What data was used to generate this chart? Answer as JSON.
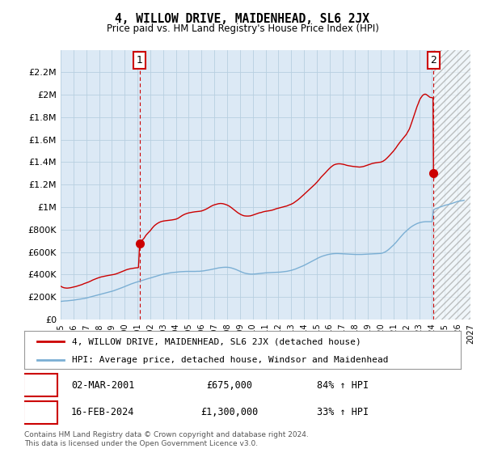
{
  "title": "4, WILLOW DRIVE, MAIDENHEAD, SL6 2JX",
  "subtitle": "Price paid vs. HM Land Registry's House Price Index (HPI)",
  "legend_line1": "4, WILLOW DRIVE, MAIDENHEAD, SL6 2JX (detached house)",
  "legend_line2": "HPI: Average price, detached house, Windsor and Maidenhead",
  "annotation1_label": "1",
  "annotation1_date": "02-MAR-2001",
  "annotation1_price": "£675,000",
  "annotation1_hpi": "84% ↑ HPI",
  "annotation1_year": 2001.17,
  "annotation1_value": 675000,
  "annotation2_label": "2",
  "annotation2_date": "16-FEB-2024",
  "annotation2_price": "£1,300,000",
  "annotation2_hpi": "33% ↑ HPI",
  "annotation2_year": 2024.12,
  "annotation2_value": 1300000,
  "marker1_year": 2001.17,
  "marker1_value": 675000,
  "marker2_year": 2024.12,
  "marker2_value": 1300000,
  "xmin": 1995,
  "xmax": 2027,
  "ymin": 0,
  "ymax": 2400000,
  "yticks": [
    0,
    200000,
    400000,
    600000,
    800000,
    1000000,
    1200000,
    1400000,
    1600000,
    1800000,
    2000000,
    2200000
  ],
  "ytick_labels": [
    "£0",
    "£200K",
    "£400K",
    "£600K",
    "£800K",
    "£1M",
    "£1.2M",
    "£1.4M",
    "£1.6M",
    "£1.8M",
    "£2M",
    "£2.2M"
  ],
  "red_color": "#cc0000",
  "blue_color": "#7bafd4",
  "hatch_color": "#bbbbbb",
  "grid_color": "#b8cfe0",
  "plot_bg_color": "#dce9f5",
  "background_color": "#ffffff",
  "future_shade_start": 2024.12,
  "footer": "Contains HM Land Registry data © Crown copyright and database right 2024.\nThis data is licensed under the Open Government Licence v3.0.",
  "red_line_data": [
    [
      1995.0,
      295000
    ],
    [
      1995.08,
      290000
    ],
    [
      1995.17,
      285000
    ],
    [
      1995.25,
      282000
    ],
    [
      1995.33,
      280000
    ],
    [
      1995.5,
      278000
    ],
    [
      1995.67,
      280000
    ],
    [
      1995.83,
      283000
    ],
    [
      1996.0,
      288000
    ],
    [
      1996.17,
      292000
    ],
    [
      1996.33,
      298000
    ],
    [
      1996.5,
      304000
    ],
    [
      1996.67,
      310000
    ],
    [
      1996.83,
      318000
    ],
    [
      1997.0,
      325000
    ],
    [
      1997.17,
      332000
    ],
    [
      1997.33,
      340000
    ],
    [
      1997.5,
      350000
    ],
    [
      1997.67,
      358000
    ],
    [
      1997.83,
      365000
    ],
    [
      1998.0,
      372000
    ],
    [
      1998.17,
      378000
    ],
    [
      1998.33,
      382000
    ],
    [
      1998.5,
      386000
    ],
    [
      1998.67,
      390000
    ],
    [
      1998.83,
      393000
    ],
    [
      1999.0,
      396000
    ],
    [
      1999.17,
      400000
    ],
    [
      1999.33,
      405000
    ],
    [
      1999.5,
      412000
    ],
    [
      1999.67,
      420000
    ],
    [
      1999.83,
      428000
    ],
    [
      2000.0,
      436000
    ],
    [
      2000.17,
      443000
    ],
    [
      2000.33,
      448000
    ],
    [
      2000.5,
      452000
    ],
    [
      2000.67,
      455000
    ],
    [
      2000.83,
      458000
    ],
    [
      2001.0,
      460000
    ],
    [
      2001.08,
      462000
    ],
    [
      2001.17,
      675000
    ],
    [
      2001.25,
      690000
    ],
    [
      2001.33,
      700000
    ],
    [
      2001.5,
      720000
    ],
    [
      2001.67,
      750000
    ],
    [
      2001.83,
      770000
    ],
    [
      2002.0,
      790000
    ],
    [
      2002.17,
      815000
    ],
    [
      2002.33,
      835000
    ],
    [
      2002.5,
      850000
    ],
    [
      2002.67,
      862000
    ],
    [
      2002.83,
      870000
    ],
    [
      2003.0,
      875000
    ],
    [
      2003.17,
      878000
    ],
    [
      2003.33,
      880000
    ],
    [
      2003.5,
      882000
    ],
    [
      2003.67,
      885000
    ],
    [
      2003.83,
      888000
    ],
    [
      2004.0,
      892000
    ],
    [
      2004.17,
      900000
    ],
    [
      2004.33,
      912000
    ],
    [
      2004.5,
      925000
    ],
    [
      2004.67,
      935000
    ],
    [
      2004.83,
      942000
    ],
    [
      2005.0,
      948000
    ],
    [
      2005.17,
      952000
    ],
    [
      2005.33,
      955000
    ],
    [
      2005.5,
      958000
    ],
    [
      2005.67,
      960000
    ],
    [
      2005.83,
      962000
    ],
    [
      2006.0,
      965000
    ],
    [
      2006.17,
      972000
    ],
    [
      2006.33,
      980000
    ],
    [
      2006.5,
      990000
    ],
    [
      2006.67,
      1002000
    ],
    [
      2006.83,
      1012000
    ],
    [
      2007.0,
      1020000
    ],
    [
      2007.17,
      1025000
    ],
    [
      2007.33,
      1030000
    ],
    [
      2007.5,
      1032000
    ],
    [
      2007.67,
      1030000
    ],
    [
      2007.83,
      1025000
    ],
    [
      2008.0,
      1018000
    ],
    [
      2008.17,
      1008000
    ],
    [
      2008.33,
      995000
    ],
    [
      2008.5,
      980000
    ],
    [
      2008.67,
      965000
    ],
    [
      2008.83,
      950000
    ],
    [
      2009.0,
      938000
    ],
    [
      2009.17,
      928000
    ],
    [
      2009.33,
      922000
    ],
    [
      2009.5,
      920000
    ],
    [
      2009.67,
      920000
    ],
    [
      2009.83,
      922000
    ],
    [
      2010.0,
      928000
    ],
    [
      2010.17,
      935000
    ],
    [
      2010.33,
      942000
    ],
    [
      2010.5,
      948000
    ],
    [
      2010.67,
      952000
    ],
    [
      2010.83,
      958000
    ],
    [
      2011.0,
      962000
    ],
    [
      2011.17,
      965000
    ],
    [
      2011.33,
      968000
    ],
    [
      2011.5,
      972000
    ],
    [
      2011.67,
      978000
    ],
    [
      2011.83,
      985000
    ],
    [
      2012.0,
      990000
    ],
    [
      2012.17,
      995000
    ],
    [
      2012.33,
      1000000
    ],
    [
      2012.5,
      1005000
    ],
    [
      2012.67,
      1010000
    ],
    [
      2012.83,
      1018000
    ],
    [
      2013.0,
      1025000
    ],
    [
      2013.17,
      1035000
    ],
    [
      2013.33,
      1048000
    ],
    [
      2013.5,
      1062000
    ],
    [
      2013.67,
      1078000
    ],
    [
      2013.83,
      1095000
    ],
    [
      2014.0,
      1112000
    ],
    [
      2014.17,
      1130000
    ],
    [
      2014.33,
      1148000
    ],
    [
      2014.5,
      1165000
    ],
    [
      2014.67,
      1182000
    ],
    [
      2014.83,
      1200000
    ],
    [
      2015.0,
      1220000
    ],
    [
      2015.17,
      1242000
    ],
    [
      2015.33,
      1265000
    ],
    [
      2015.5,
      1285000
    ],
    [
      2015.67,
      1305000
    ],
    [
      2015.83,
      1325000
    ],
    [
      2016.0,
      1345000
    ],
    [
      2016.17,
      1362000
    ],
    [
      2016.33,
      1375000
    ],
    [
      2016.5,
      1382000
    ],
    [
      2016.67,
      1385000
    ],
    [
      2016.83,
      1385000
    ],
    [
      2017.0,
      1382000
    ],
    [
      2017.17,
      1378000
    ],
    [
      2017.33,
      1372000
    ],
    [
      2017.5,
      1368000
    ],
    [
      2017.67,
      1365000
    ],
    [
      2017.83,
      1362000
    ],
    [
      2018.0,
      1360000
    ],
    [
      2018.17,
      1358000
    ],
    [
      2018.33,
      1356000
    ],
    [
      2018.5,
      1358000
    ],
    [
      2018.67,
      1362000
    ],
    [
      2018.83,
      1368000
    ],
    [
      2019.0,
      1375000
    ],
    [
      2019.17,
      1382000
    ],
    [
      2019.33,
      1388000
    ],
    [
      2019.5,
      1392000
    ],
    [
      2019.67,
      1395000
    ],
    [
      2019.83,
      1398000
    ],
    [
      2020.0,
      1400000
    ],
    [
      2020.17,
      1408000
    ],
    [
      2020.33,
      1420000
    ],
    [
      2020.5,
      1438000
    ],
    [
      2020.67,
      1458000
    ],
    [
      2020.83,
      1478000
    ],
    [
      2021.0,
      1500000
    ],
    [
      2021.17,
      1525000
    ],
    [
      2021.33,
      1552000
    ],
    [
      2021.5,
      1578000
    ],
    [
      2021.67,
      1602000
    ],
    [
      2021.83,
      1625000
    ],
    [
      2022.0,
      1648000
    ],
    [
      2022.08,
      1665000
    ],
    [
      2022.17,
      1682000
    ],
    [
      2022.25,
      1700000
    ],
    [
      2022.33,
      1725000
    ],
    [
      2022.42,
      1755000
    ],
    [
      2022.5,
      1782000
    ],
    [
      2022.58,
      1810000
    ],
    [
      2022.67,
      1840000
    ],
    [
      2022.75,
      1868000
    ],
    [
      2022.83,
      1895000
    ],
    [
      2022.92,
      1920000
    ],
    [
      2023.0,
      1945000
    ],
    [
      2023.08,
      1965000
    ],
    [
      2023.17,
      1980000
    ],
    [
      2023.25,
      1992000
    ],
    [
      2023.33,
      2000000
    ],
    [
      2023.42,
      2005000
    ],
    [
      2023.5,
      2005000
    ],
    [
      2023.58,
      2000000
    ],
    [
      2023.67,
      1992000
    ],
    [
      2023.75,
      1985000
    ],
    [
      2023.83,
      1978000
    ],
    [
      2023.92,
      1975000
    ],
    [
      2024.0,
      1975000
    ],
    [
      2024.08,
      1970000
    ],
    [
      2024.12,
      1300000
    ]
  ],
  "blue_line_data": [
    [
      1995.0,
      160000
    ],
    [
      1995.08,
      161000
    ],
    [
      1995.17,
      162000
    ],
    [
      1995.25,
      163000
    ],
    [
      1995.33,
      164000
    ],
    [
      1995.5,
      165000
    ],
    [
      1995.67,
      167000
    ],
    [
      1995.83,
      169000
    ],
    [
      1996.0,
      171000
    ],
    [
      1996.17,
      174000
    ],
    [
      1996.33,
      177000
    ],
    [
      1996.5,
      180000
    ],
    [
      1996.67,
      183000
    ],
    [
      1996.83,
      186000
    ],
    [
      1997.0,
      190000
    ],
    [
      1997.17,
      195000
    ],
    [
      1997.33,
      200000
    ],
    [
      1997.5,
      205000
    ],
    [
      1997.67,
      210000
    ],
    [
      1997.83,
      215000
    ],
    [
      1998.0,
      220000
    ],
    [
      1998.17,
      225000
    ],
    [
      1998.33,
      230000
    ],
    [
      1998.5,
      235000
    ],
    [
      1998.67,
      240000
    ],
    [
      1998.83,
      245000
    ],
    [
      1999.0,
      250000
    ],
    [
      1999.17,
      256000
    ],
    [
      1999.33,
      263000
    ],
    [
      1999.5,
      270000
    ],
    [
      1999.67,
      277000
    ],
    [
      1999.83,
      284000
    ],
    [
      2000.0,
      292000
    ],
    [
      2000.17,
      300000
    ],
    [
      2000.33,
      308000
    ],
    [
      2000.5,
      315000
    ],
    [
      2000.67,
      322000
    ],
    [
      2000.83,
      328000
    ],
    [
      2001.0,
      334000
    ],
    [
      2001.17,
      340000
    ],
    [
      2001.33,
      346000
    ],
    [
      2001.5,
      352000
    ],
    [
      2001.67,
      358000
    ],
    [
      2001.83,
      363000
    ],
    [
      2002.0,
      368000
    ],
    [
      2002.17,
      374000
    ],
    [
      2002.33,
      380000
    ],
    [
      2002.5,
      386000
    ],
    [
      2002.67,
      392000
    ],
    [
      2002.83,
      397000
    ],
    [
      2003.0,
      402000
    ],
    [
      2003.17,
      406000
    ],
    [
      2003.33,
      410000
    ],
    [
      2003.5,
      413000
    ],
    [
      2003.67,
      416000
    ],
    [
      2003.83,
      418000
    ],
    [
      2004.0,
      420000
    ],
    [
      2004.17,
      422000
    ],
    [
      2004.33,
      424000
    ],
    [
      2004.5,
      425000
    ],
    [
      2004.67,
      426000
    ],
    [
      2004.83,
      427000
    ],
    [
      2005.0,
      427000
    ],
    [
      2005.17,
      427000
    ],
    [
      2005.33,
      427000
    ],
    [
      2005.5,
      427000
    ],
    [
      2005.67,
      428000
    ],
    [
      2005.83,
      428000
    ],
    [
      2006.0,
      430000
    ],
    [
      2006.17,
      432000
    ],
    [
      2006.33,
      435000
    ],
    [
      2006.5,
      438000
    ],
    [
      2006.67,
      442000
    ],
    [
      2006.83,
      446000
    ],
    [
      2007.0,
      450000
    ],
    [
      2007.17,
      454000
    ],
    [
      2007.33,
      458000
    ],
    [
      2007.5,
      461000
    ],
    [
      2007.67,
      463000
    ],
    [
      2007.83,
      464000
    ],
    [
      2008.0,
      464000
    ],
    [
      2008.17,
      462000
    ],
    [
      2008.33,
      458000
    ],
    [
      2008.5,
      452000
    ],
    [
      2008.67,
      445000
    ],
    [
      2008.83,
      437000
    ],
    [
      2009.0,
      428000
    ],
    [
      2009.17,
      420000
    ],
    [
      2009.33,
      413000
    ],
    [
      2009.5,
      408000
    ],
    [
      2009.67,
      405000
    ],
    [
      2009.83,
      403000
    ],
    [
      2010.0,
      403000
    ],
    [
      2010.17,
      404000
    ],
    [
      2010.33,
      406000
    ],
    [
      2010.5,
      408000
    ],
    [
      2010.67,
      410000
    ],
    [
      2010.83,
      412000
    ],
    [
      2011.0,
      414000
    ],
    [
      2011.17,
      415000
    ],
    [
      2011.33,
      416000
    ],
    [
      2011.5,
      417000
    ],
    [
      2011.67,
      418000
    ],
    [
      2011.83,
      419000
    ],
    [
      2012.0,
      420000
    ],
    [
      2012.17,
      421000
    ],
    [
      2012.33,
      423000
    ],
    [
      2012.5,
      425000
    ],
    [
      2012.67,
      428000
    ],
    [
      2012.83,
      432000
    ],
    [
      2013.0,
      436000
    ],
    [
      2013.17,
      442000
    ],
    [
      2013.33,
      448000
    ],
    [
      2013.5,
      456000
    ],
    [
      2013.67,
      464000
    ],
    [
      2013.83,
      472000
    ],
    [
      2014.0,
      480000
    ],
    [
      2014.17,
      490000
    ],
    [
      2014.33,
      500000
    ],
    [
      2014.5,
      510000
    ],
    [
      2014.67,
      520000
    ],
    [
      2014.83,
      530000
    ],
    [
      2015.0,
      540000
    ],
    [
      2015.17,
      550000
    ],
    [
      2015.33,
      558000
    ],
    [
      2015.5,
      565000
    ],
    [
      2015.67,
      571000
    ],
    [
      2015.83,
      576000
    ],
    [
      2016.0,
      580000
    ],
    [
      2016.17,
      583000
    ],
    [
      2016.33,
      585000
    ],
    [
      2016.5,
      586000
    ],
    [
      2016.67,
      586000
    ],
    [
      2016.83,
      585000
    ],
    [
      2017.0,
      584000
    ],
    [
      2017.17,
      583000
    ],
    [
      2017.33,
      582000
    ],
    [
      2017.5,
      581000
    ],
    [
      2017.67,
      580000
    ],
    [
      2017.83,
      579000
    ],
    [
      2018.0,
      578000
    ],
    [
      2018.17,
      578000
    ],
    [
      2018.33,
      578000
    ],
    [
      2018.5,
      578000
    ],
    [
      2018.67,
      579000
    ],
    [
      2018.83,
      580000
    ],
    [
      2019.0,
      581000
    ],
    [
      2019.17,
      582000
    ],
    [
      2019.33,
      583000
    ],
    [
      2019.5,
      584000
    ],
    [
      2019.67,
      585000
    ],
    [
      2019.83,
      586000
    ],
    [
      2020.0,
      587000
    ],
    [
      2020.17,
      592000
    ],
    [
      2020.33,
      600000
    ],
    [
      2020.5,
      612000
    ],
    [
      2020.67,
      628000
    ],
    [
      2020.83,
      645000
    ],
    [
      2021.0,
      663000
    ],
    [
      2021.17,
      683000
    ],
    [
      2021.33,
      705000
    ],
    [
      2021.5,
      728000
    ],
    [
      2021.67,
      750000
    ],
    [
      2021.83,
      770000
    ],
    [
      2022.0,
      788000
    ],
    [
      2022.17,
      805000
    ],
    [
      2022.33,
      820000
    ],
    [
      2022.5,
      833000
    ],
    [
      2022.67,
      844000
    ],
    [
      2022.83,
      853000
    ],
    [
      2023.0,
      860000
    ],
    [
      2023.17,
      865000
    ],
    [
      2023.33,
      868000
    ],
    [
      2023.5,
      870000
    ],
    [
      2023.67,
      870000
    ],
    [
      2023.83,
      870000
    ],
    [
      2024.0,
      870000
    ],
    [
      2024.12,
      975000
    ],
    [
      2024.25,
      985000
    ],
    [
      2024.5,
      995000
    ],
    [
      2024.75,
      1005000
    ],
    [
      2025.0,
      1015000
    ],
    [
      2025.5,
      1030000
    ],
    [
      2026.0,
      1050000
    ],
    [
      2026.5,
      1060000
    ]
  ]
}
